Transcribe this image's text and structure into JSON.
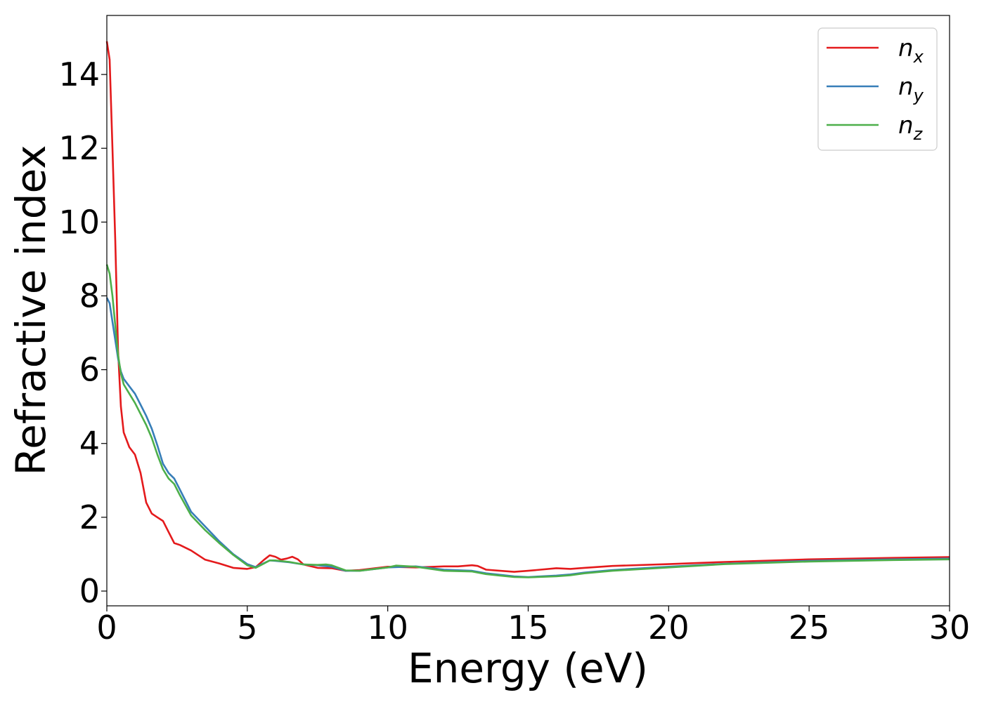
{
  "chart_data": {
    "type": "line",
    "title": "",
    "xlabel": "Energy (eV)",
    "ylabel": "Refractive index",
    "xlim": [
      0,
      30
    ],
    "ylim": [
      -0.4,
      15.6
    ],
    "xticks": [
      0,
      5,
      10,
      15,
      20,
      25,
      30
    ],
    "yticks": [
      0,
      2,
      4,
      6,
      8,
      10,
      12,
      14
    ],
    "grid": false,
    "legend": {
      "position": "top-right",
      "entries": [
        {
          "base": "n",
          "sub": "x"
        },
        {
          "base": "n",
          "sub": "y"
        },
        {
          "base": "n",
          "sub": "z"
        }
      ]
    },
    "series": [
      {
        "name": "n_x",
        "color": "#e41a1c",
        "x": [
          0,
          0.1,
          0.2,
          0.3,
          0.4,
          0.5,
          0.6,
          0.8,
          1.0,
          1.2,
          1.4,
          1.6,
          1.8,
          2.0,
          2.2,
          2.4,
          2.6,
          3.0,
          3.5,
          4.0,
          4.5,
          5.0,
          5.3,
          5.6,
          5.8,
          6.0,
          6.2,
          6.4,
          6.6,
          6.8,
          7.0,
          7.5,
          8.0,
          8.5,
          9.0,
          10.0,
          11.0,
          12.0,
          12.5,
          13.0,
          13.2,
          13.5,
          14.0,
          14.5,
          15.0,
          16.0,
          16.5,
          17.0,
          18.0,
          20.0,
          22.0,
          25.0,
          28.0,
          30.0
        ],
        "y": [
          14.9,
          14.4,
          12.0,
          9.5,
          6.5,
          5.0,
          4.3,
          3.9,
          3.7,
          3.2,
          2.4,
          2.1,
          2.0,
          1.9,
          1.6,
          1.3,
          1.25,
          1.1,
          0.85,
          0.75,
          0.63,
          0.6,
          0.65,
          0.85,
          0.97,
          0.93,
          0.85,
          0.88,
          0.93,
          0.86,
          0.72,
          0.63,
          0.62,
          0.55,
          0.57,
          0.66,
          0.64,
          0.67,
          0.67,
          0.7,
          0.68,
          0.58,
          0.55,
          0.52,
          0.55,
          0.62,
          0.6,
          0.63,
          0.68,
          0.73,
          0.79,
          0.86,
          0.9,
          0.92
        ]
      },
      {
        "name": "n_y",
        "color": "#377eb8",
        "x": [
          0,
          0.1,
          0.2,
          0.3,
          0.4,
          0.5,
          0.6,
          0.8,
          1.0,
          1.2,
          1.4,
          1.6,
          1.8,
          2.0,
          2.2,
          2.4,
          2.6,
          3.0,
          3.5,
          4.0,
          4.5,
          5.0,
          5.3,
          5.6,
          5.8,
          6.0,
          6.5,
          7.0,
          7.5,
          8.0,
          8.5,
          9.0,
          10.0,
          11.0,
          12.0,
          13.0,
          13.5,
          14.0,
          14.5,
          15.0,
          16.0,
          16.5,
          17.0,
          18.0,
          20.0,
          22.0,
          25.0,
          28.0,
          30.0
        ],
        "y": [
          7.95,
          7.8,
          7.3,
          6.8,
          6.3,
          5.95,
          5.75,
          5.55,
          5.35,
          5.05,
          4.75,
          4.4,
          3.95,
          3.45,
          3.2,
          3.05,
          2.75,
          2.15,
          1.75,
          1.35,
          1.0,
          0.73,
          0.65,
          0.76,
          0.83,
          0.82,
          0.78,
          0.72,
          0.7,
          0.66,
          0.55,
          0.55,
          0.64,
          0.67,
          0.58,
          0.55,
          0.48,
          0.44,
          0.4,
          0.38,
          0.42,
          0.45,
          0.5,
          0.57,
          0.66,
          0.74,
          0.82,
          0.86,
          0.88
        ]
      },
      {
        "name": "n_z",
        "color": "#4daf4a",
        "x": [
          0,
          0.1,
          0.2,
          0.3,
          0.4,
          0.5,
          0.6,
          0.8,
          1.0,
          1.2,
          1.4,
          1.6,
          1.8,
          2.0,
          2.2,
          2.4,
          2.6,
          3.0,
          3.5,
          4.0,
          4.5,
          5.0,
          5.3,
          5.6,
          5.8,
          6.0,
          6.5,
          7.0,
          7.5,
          7.8,
          8.0,
          8.5,
          9.0,
          10.0,
          10.3,
          11.0,
          12.0,
          13.0,
          13.5,
          14.0,
          14.5,
          15.0,
          16.0,
          16.5,
          17.0,
          18.0,
          20.0,
          22.0,
          25.0,
          28.0,
          30.0
        ],
        "y": [
          8.85,
          8.6,
          8.0,
          7.2,
          6.4,
          5.9,
          5.6,
          5.35,
          5.1,
          4.8,
          4.5,
          4.15,
          3.7,
          3.3,
          3.05,
          2.9,
          2.6,
          2.05,
          1.65,
          1.3,
          0.98,
          0.7,
          0.63,
          0.75,
          0.83,
          0.83,
          0.79,
          0.72,
          0.71,
          0.72,
          0.7,
          0.56,
          0.55,
          0.64,
          0.69,
          0.66,
          0.55,
          0.53,
          0.46,
          0.42,
          0.38,
          0.37,
          0.4,
          0.43,
          0.48,
          0.55,
          0.64,
          0.73,
          0.8,
          0.84,
          0.86
        ]
      }
    ]
  }
}
